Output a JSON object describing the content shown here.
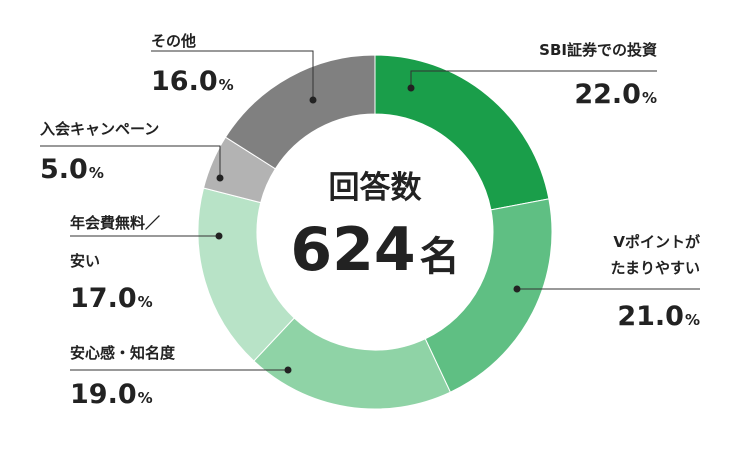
{
  "chart_data": {
    "type": "pie",
    "variant": "donut",
    "center": {
      "label": "回答数",
      "value": "624",
      "unit": "名"
    },
    "unit_suffix": "%",
    "slices": [
      {
        "label_lines": [
          "SBI証券での投資"
        ],
        "value": 22.0,
        "value_text": "22.0",
        "color": "#1a9e4a"
      },
      {
        "label_lines": [
          "Vポイントが",
          "たまりやすい"
        ],
        "value": 21.0,
        "value_text": "21.0",
        "color": "#5fbf83"
      },
      {
        "label_lines": [
          "安心感・知名度"
        ],
        "value": 19.0,
        "value_text": "19.0",
        "color": "#8fd3a6"
      },
      {
        "label_lines": [
          "年会費無料／",
          "安い"
        ],
        "value": 17.0,
        "value_text": "17.0",
        "color": "#b8e3c7"
      },
      {
        "label_lines": [
          "入会キャンペーン"
        ],
        "value": 5.0,
        "value_text": "5.0",
        "color": "#b3b3b3"
      },
      {
        "label_lines": [
          "その他"
        ],
        "value": 16.0,
        "value_text": "16.0",
        "color": "#808080"
      }
    ]
  }
}
